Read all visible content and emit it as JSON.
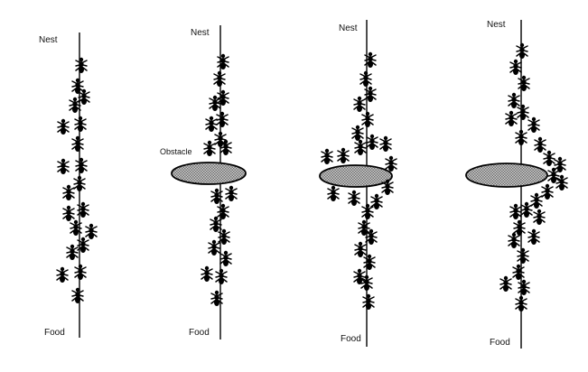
{
  "panels": [
    {
      "id": "p1",
      "nest_label": "Nest",
      "food_label": "Food"
    },
    {
      "id": "p2",
      "nest_label": "Nest",
      "food_label": "Food",
      "obstacle_label": "Obstacle"
    },
    {
      "id": "p3",
      "nest_label": "Nest",
      "food_label": "Food"
    },
    {
      "id": "p4",
      "nest_label": "Nest",
      "food_label": "Food"
    }
  ],
  "colors": {
    "ink": "#000000",
    "obstacle_fill": "#a8a8a8",
    "background": "#ffffff"
  }
}
